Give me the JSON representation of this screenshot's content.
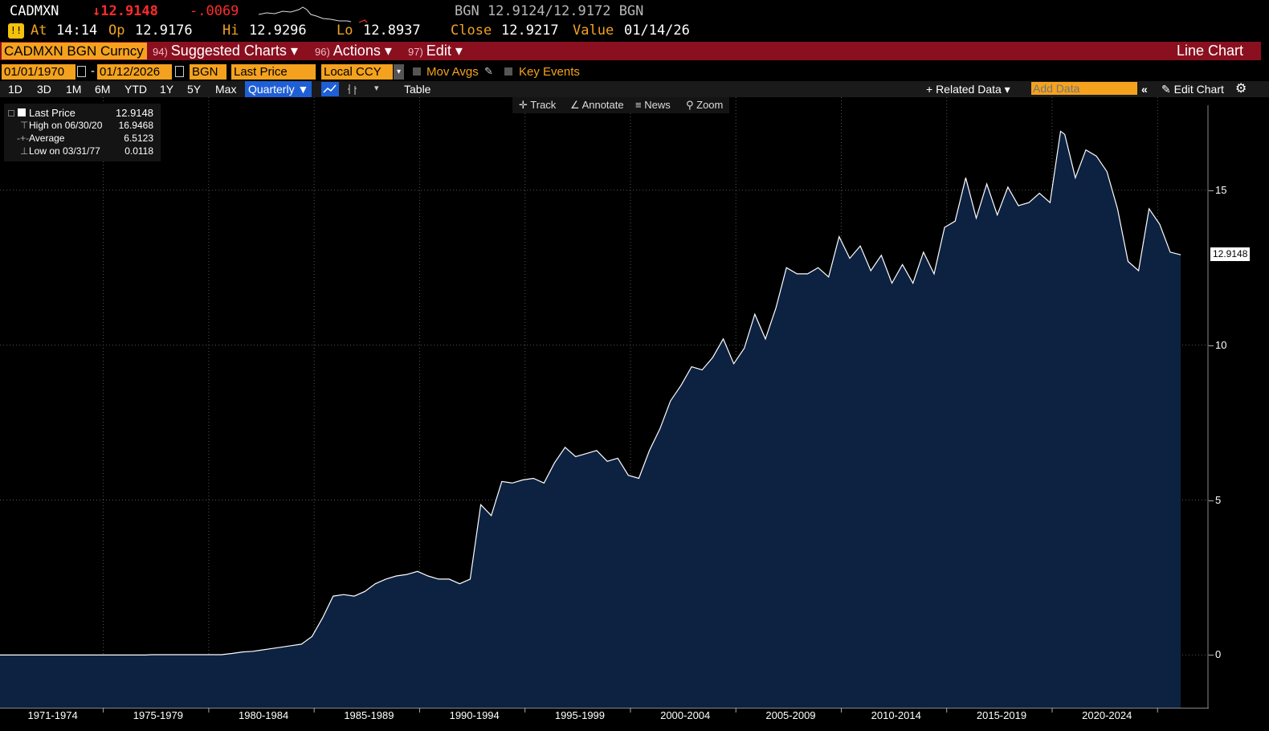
{
  "quote": {
    "ticker": "CADMXN",
    "last": "↓12.9148",
    "change": "-.0069",
    "bid_ask": "BGN 12.9124/12.9172 BGN",
    "at_label": "At",
    "at_time": "14:14",
    "op_label": "Op",
    "open": "12.9176",
    "hi_label": "Hi",
    "high": "12.9296",
    "lo_label": "Lo",
    "low": "12.8937",
    "close_label": "Close",
    "close": "12.9217",
    "value_label": "Value",
    "value_date": "01/14/26"
  },
  "menubar": {
    "security": "CADMXN BGN Curncy",
    "suggested_num": "94)",
    "suggested": "Suggested Charts ▾",
    "actions_num": "96)",
    "actions": "Actions ▾",
    "edit_num": "97)",
    "edit": "Edit ▾",
    "chart_type": "Line Chart"
  },
  "controls": {
    "start_date": "01/01/1970",
    "end_date": "01/12/2026",
    "source": "BGN",
    "field": "Last Price",
    "currency": "Local CCY",
    "mov_avgs": "Mov Avgs",
    "key_events": "Key Events",
    "ranges": [
      "1D",
      "3D",
      "1M",
      "6M",
      "YTD",
      "1Y",
      "5Y",
      "Max"
    ],
    "frequency": "Quarterly ▼",
    "table": "Table",
    "related_data": "+ Related Data ▾",
    "add_data_placeholder": "Add Data",
    "edit_chart": "Edit Chart"
  },
  "chart_tools": {
    "track": "Track",
    "annotate": "Annotate",
    "news": "News",
    "zoom": "Zoom"
  },
  "legend": {
    "last_price_label": "Last Price",
    "last_price_value": "12.9148",
    "high_label": "High on 06/30/20",
    "high_value": "16.9468",
    "average_label": "Average",
    "average_value": "6.5123",
    "low_label": "Low on 03/31/77",
    "low_value": "0.0118"
  },
  "last_price_tag": "12.9148",
  "colors": {
    "accent_orange": "#f4a21e",
    "menubar_red": "#8a1020",
    "area_fill": "#0d2141",
    "line": "#ffffff",
    "down_red": "#ff2b2b"
  },
  "chart_data": {
    "type": "area",
    "title": "",
    "xlabel": "",
    "ylabel": "",
    "ylim": [
      -1.7,
      18
    ],
    "yticks": [
      0,
      5,
      10,
      15
    ],
    "xlim": [
      1970,
      2026.3
    ],
    "x_tick_labels": [
      "1971-1974",
      "1975-1979",
      "1980-1984",
      "1985-1989",
      "1990-1994",
      "1995-1999",
      "2000-2004",
      "2005-2009",
      "2010-2014",
      "2015-2019",
      "2020-2024"
    ],
    "x_tick_centers": [
      1972.5,
      1977.5,
      1982.5,
      1987.5,
      1992.5,
      1997.5,
      2002.5,
      2007.5,
      2012.5,
      2017.5,
      2022.5
    ],
    "x_dividers": [
      1974.9,
      1979.9,
      1984.9,
      1989.9,
      1994.9,
      1999.9,
      2004.9,
      2009.9,
      2014.9,
      2019.9,
      2024.9
    ],
    "series": [
      {
        "x": [
          1970,
          1976.9,
          1977.2,
          1980.5,
          1981,
          1981.5,
          1982,
          1982.3,
          1982.8,
          1983.3,
          1983.8,
          1984.3,
          1984.8,
          1985.3,
          1985.8,
          1986.3,
          1986.8,
          1987.3,
          1987.8,
          1988.3,
          1988.8,
          1989.3,
          1989.8,
          1990.3,
          1990.8,
          1991.3,
          1991.8,
          1992.3,
          1992.8,
          1993.3,
          1993.8,
          1994.3,
          1994.8,
          1995.3,
          1995.8,
          1996.3,
          1996.8,
          1997.3,
          1997.8,
          1998.3,
          1998.8,
          1999.3,
          1999.8,
          2000.3,
          2000.8,
          2001.3,
          2001.8,
          2002.3,
          2002.8,
          2003.3,
          2003.8,
          2004.3,
          2004.8,
          2005.3,
          2005.8,
          2006.3,
          2006.8,
          2007.3,
          2007.8,
          2008.3,
          2008.8,
          2009.3,
          2009.8,
          2010.3,
          2010.8,
          2011.3,
          2011.8,
          2012.3,
          2012.8,
          2013.3,
          2013.8,
          2014.3,
          2014.8,
          2015.3,
          2015.8,
          2016.3,
          2016.8,
          2017.3,
          2017.8,
          2018.3,
          2018.8,
          2019.3,
          2019.8,
          2020.3,
          2020.5,
          2021,
          2021.5,
          2022,
          2022.5,
          2023,
          2023.5,
          2024,
          2024.5,
          2025,
          2025.5,
          2026.0
        ],
        "y": [
          0.0,
          0.0,
          0.01,
          0.01,
          0.05,
          0.1,
          0.12,
          0.15,
          0.2,
          0.25,
          0.3,
          0.35,
          0.6,
          1.2,
          1.9,
          1.95,
          1.9,
          2.05,
          2.3,
          2.45,
          2.55,
          2.6,
          2.7,
          2.55,
          2.45,
          2.45,
          2.3,
          2.45,
          4.85,
          4.5,
          5.6,
          5.55,
          5.65,
          5.7,
          5.55,
          6.2,
          6.7,
          6.4,
          6.5,
          6.6,
          6.25,
          6.35,
          5.8,
          5.7,
          6.6,
          7.3,
          8.2,
          8.7,
          9.3,
          9.2,
          9.6,
          10.2,
          9.4,
          9.9,
          11.0,
          10.2,
          11.2,
          12.5,
          12.3,
          12.3,
          12.5,
          12.2,
          13.5,
          12.8,
          13.2,
          12.4,
          12.9,
          12.0,
          12.6,
          12.0,
          13.0,
          12.3,
          13.8,
          14.0,
          15.4,
          14.1,
          15.2,
          14.2,
          15.1,
          14.5,
          14.6,
          14.9,
          14.6,
          16.9,
          16.8,
          15.4,
          16.3,
          16.1,
          15.6,
          14.4,
          12.7,
          12.4,
          14.4,
          13.9,
          13.0,
          12.9148
        ]
      }
    ]
  }
}
